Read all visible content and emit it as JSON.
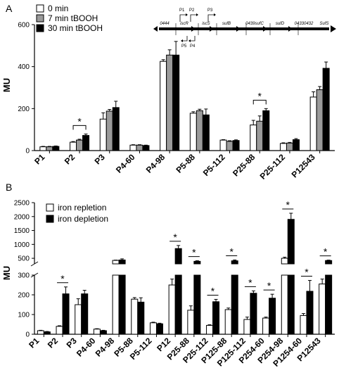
{
  "chart_data": [
    {
      "panel": "A",
      "type": "bar",
      "ylabel": "MU",
      "ylim": [
        0,
        600
      ],
      "yticks": [
        0,
        200,
        400,
        600
      ],
      "legend": "top-left",
      "grid": false,
      "categories": [
        "P1",
        "P2",
        "P3",
        "P4-60",
        "P4-98",
        "P5-88",
        "P5-112",
        "P25-88",
        "P25-112",
        "P12543"
      ],
      "series": [
        {
          "name": "0 min",
          "color": "#ffffff",
          "values": [
            18,
            40,
            150,
            26,
            425,
            178,
            50,
            122,
            34,
            255
          ],
          "errors": [
            2,
            3,
            30,
            2,
            8,
            7,
            2,
            22,
            3,
            25
          ]
        },
        {
          "name": "7 min tBOOH",
          "color": "#9a9a9a",
          "values": [
            18,
            50,
            188,
            26,
            455,
            190,
            44,
            140,
            36,
            290
          ],
          "errors": [
            2,
            4,
            8,
            2,
            25,
            7,
            3,
            25,
            3,
            15
          ]
        },
        {
          "name": "30 min tBOOH",
          "color": "#000000",
          "values": [
            20,
            72,
            205,
            24,
            455,
            170,
            48,
            190,
            52,
            392
          ],
          "errors": [
            2,
            7,
            30,
            2,
            65,
            28,
            3,
            10,
            5,
            30
          ]
        }
      ],
      "significance": [
        {
          "category": "P2",
          "label": "*"
        },
        {
          "category": "P25-88",
          "label": "*"
        }
      ]
    },
    {
      "panel": "B",
      "type": "bar",
      "ylabel": "MU",
      "broken_axis": true,
      "ylim_lower": [
        0,
        300
      ],
      "ylim_upper": [
        300,
        2500
      ],
      "yticks_lower": [
        0,
        100,
        200,
        300
      ],
      "yticks_upper": [
        500,
        1000,
        1500,
        2000,
        2500
      ],
      "legend": "top-left",
      "grid": false,
      "categories": [
        "P1",
        "P2",
        "P3",
        "P4-60",
        "P4-98",
        "P5-88",
        "P5-112",
        "P12",
        "P25-88",
        "P25-112",
        "P125-88",
        "P125-112",
        "P254-60",
        "P254-98",
        "P1254-60",
        "P12543"
      ],
      "series": [
        {
          "name": "iron repletion",
          "color": "#ffffff",
          "values": [
            18,
            40,
            150,
            26,
            425,
            178,
            58,
            250,
            122,
            45,
            125,
            75,
            82,
            500,
            95,
            255
          ],
          "errors": [
            2,
            3,
            30,
            2,
            10,
            8,
            3,
            30,
            22,
            3,
            8,
            12,
            5,
            40,
            10,
            25
          ]
        },
        {
          "name": "iron depletion",
          "color": "#000000",
          "values": [
            12,
            205,
            205,
            18,
            440,
            163,
            53,
            850,
            392,
            165,
            410,
            208,
            183,
            1900,
            218,
            420
          ],
          "errors": [
            2,
            35,
            18,
            2,
            40,
            22,
            3,
            110,
            20,
            12,
            30,
            12,
            20,
            220,
            55,
            15
          ]
        }
      ],
      "significance": [
        {
          "category": "P2",
          "label": "*"
        },
        {
          "category": "P12",
          "label": "*"
        },
        {
          "category": "P25-88",
          "label": "*"
        },
        {
          "category": "P25-112",
          "label": "*"
        },
        {
          "category": "P125-88",
          "label": "*"
        },
        {
          "category": "P125-112",
          "label": "*"
        },
        {
          "category": "P254-60",
          "label": "*"
        },
        {
          "category": "P254-98",
          "label": "*"
        },
        {
          "category": "P1254-60",
          "label": "*"
        },
        {
          "category": "P12543",
          "label": "*"
        }
      ]
    }
  ],
  "operon": {
    "genes": [
      "0444",
      "iscR",
      "iscS",
      "sufB",
      "0439sufC",
      "sufD",
      "04330432",
      "SufS"
    ],
    "promoters": [
      "P1",
      "P2",
      "P3",
      "P5",
      "P4"
    ]
  }
}
